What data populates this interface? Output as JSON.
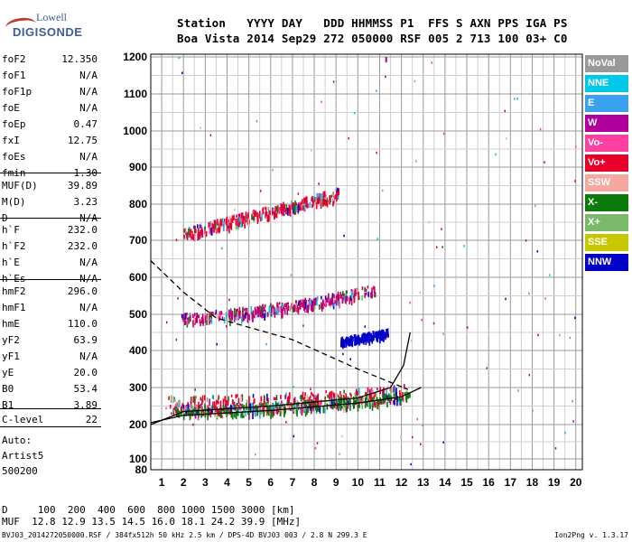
{
  "logo": {
    "line1": "Lowell",
    "line2": "DIGISONDE"
  },
  "header": {
    "line1": "Station   YYYY DAY   DDD HHMMSS P1  FFS S AXN PPS IGA PS",
    "line2": "Boa Vista 2014 Sep29 272 050000 RSF 005 2 713 100 03+ C0"
  },
  "params": [
    {
      "k": "foF2",
      "v": "12.350"
    },
    {
      "k": "foF1",
      "v": "N/A"
    },
    {
      "k": "foF1p",
      "v": "N/A"
    },
    {
      "k": "foE",
      "v": "N/A"
    },
    {
      "k": "foEp",
      "v": "0.47"
    },
    {
      "k": "fxI",
      "v": "12.75"
    },
    {
      "k": "foEs",
      "v": "N/A"
    },
    {
      "k": "fmin",
      "v": "1.30"
    },
    {
      "k": "MUF(D)",
      "v": "39.89"
    },
    {
      "k": "M(D)",
      "v": "3.23"
    },
    {
      "k": "D",
      "v": "N/A"
    },
    {
      "k": "h`F",
      "v": "232.0"
    },
    {
      "k": "h`F2",
      "v": "232.0"
    },
    {
      "k": "h`E",
      "v": "N/A"
    },
    {
      "k": "h`Es",
      "v": "N/A"
    },
    {
      "k": "hmF2",
      "v": "296.0"
    },
    {
      "k": "hmF1",
      "v": "N/A"
    },
    {
      "k": "hmE",
      "v": "110.0"
    },
    {
      "k": "yF2",
      "v": "63.9"
    },
    {
      "k": "yF1",
      "v": "N/A"
    },
    {
      "k": "yE",
      "v": "20.0"
    },
    {
      "k": "B0",
      "v": "53.4"
    },
    {
      "k": "B1",
      "v": "3.89"
    },
    {
      "k": "C-level",
      "v": "22"
    }
  ],
  "notes": {
    "auto": "Auto:",
    "artist": "Artist5",
    "version": "500200"
  },
  "muf_table": {
    "d_row": "D     100  200  400  600  800 1000 1500 3000 [km]",
    "muf_row": "MUF  12.8 12.9 13.5 14.5 16.0 18.1 24.2 39.9 [MHz]"
  },
  "footer": {
    "left": "BVJ03_2014272050000.RSF / 384fx512h 50 kHz 2.5 km / DPS-4D BVJ03 003 / 2.8 N 299.3 E",
    "right": "Ion2Png v. 1.3.17"
  },
  "legend": [
    {
      "label": "NoVal",
      "color": "#999999"
    },
    {
      "label": "NNE",
      "color": "#00c8e8"
    },
    {
      "label": "E",
      "color": "#3aa0f0"
    },
    {
      "label": "W",
      "color": "#b0009e"
    },
    {
      "label": "Vo-",
      "color": "#ff40a0"
    },
    {
      "label": "Vo+",
      "color": "#e8002a"
    },
    {
      "label": "SSW",
      "color": "#f4a8a0"
    },
    {
      "label": "X-",
      "color": "#0a7a0a"
    },
    {
      "label": "X+",
      "color": "#7ab86a"
    },
    {
      "label": "SSE",
      "color": "#c8c800"
    },
    {
      "label": "NNW",
      "color": "#0000c8"
    }
  ],
  "chart_data": {
    "type": "scatter",
    "title": "",
    "xlabel": "",
    "ylabel": "",
    "xlim": [
      0.5,
      20.3
    ],
    "ylim": [
      80,
      1210
    ],
    "grid": true,
    "x_ticks": [
      1,
      2,
      3,
      4,
      5,
      6,
      7,
      8,
      9,
      10,
      11,
      12,
      13,
      14,
      15,
      16,
      17,
      18,
      19,
      20
    ],
    "y_ticks": [
      80,
      100,
      200,
      300,
      400,
      500,
      600,
      700,
      800,
      900,
      1000,
      1100,
      1200
    ],
    "traces": [
      {
        "name": "O 1st hop",
        "color": "#e8002a",
        "x0": 1.3,
        "x1": 12.1,
        "y0": 235,
        "y1": 265,
        "pow": 2
      },
      {
        "name": "O 2nd hop",
        "color": "#c0006a",
        "x0": 1.9,
        "x1": 10.8,
        "y0": 480,
        "y1": 555,
        "pow": 1.5
      },
      {
        "name": "O 3rd hop",
        "color": "#e8002a",
        "x0": 2.0,
        "x1": 9.1,
        "y0": 708,
        "y1": 818,
        "pow": 1
      },
      {
        "name": "X trace",
        "color": "#0a7a0a",
        "x0": 1.6,
        "x1": 12.4,
        "y0": 228,
        "y1": 268,
        "pow": 2
      },
      {
        "name": "NNW band",
        "color": "#0000c8",
        "x0": 9.2,
        "x1": 11.4,
        "y0": 420,
        "y1": 445,
        "pow": 1
      }
    ],
    "profile_curves": [
      {
        "name": "fit O",
        "color": "#000000",
        "dash": false,
        "points": [
          [
            0.5,
            200
          ],
          [
            2,
            235
          ],
          [
            6,
            250
          ],
          [
            10,
            272
          ],
          [
            11.5,
            300
          ],
          [
            12.1,
            360
          ],
          [
            12.4,
            450
          ]
        ]
      },
      {
        "name": "fit X",
        "color": "#000000",
        "dash": false,
        "points": [
          [
            0.5,
            205
          ],
          [
            2,
            225
          ],
          [
            6,
            238
          ],
          [
            10,
            258
          ],
          [
            12,
            275
          ],
          [
            12.9,
            300
          ]
        ]
      },
      {
        "name": "ne profile",
        "color": "#000000",
        "dash": true,
        "points": [
          [
            0.5,
            645
          ],
          [
            2,
            560
          ],
          [
            3.5,
            490
          ],
          [
            7,
            430
          ],
          [
            10,
            350
          ],
          [
            12.3,
            295
          ]
        ]
      }
    ],
    "vertical_marks": [
      {
        "x": 11.3,
        "y0": 1200,
        "y1": 1185,
        "color": "#b0009e"
      },
      {
        "x": 1.8,
        "y0": 1200,
        "y1": 1195,
        "color": "#00c8e8"
      }
    ]
  }
}
